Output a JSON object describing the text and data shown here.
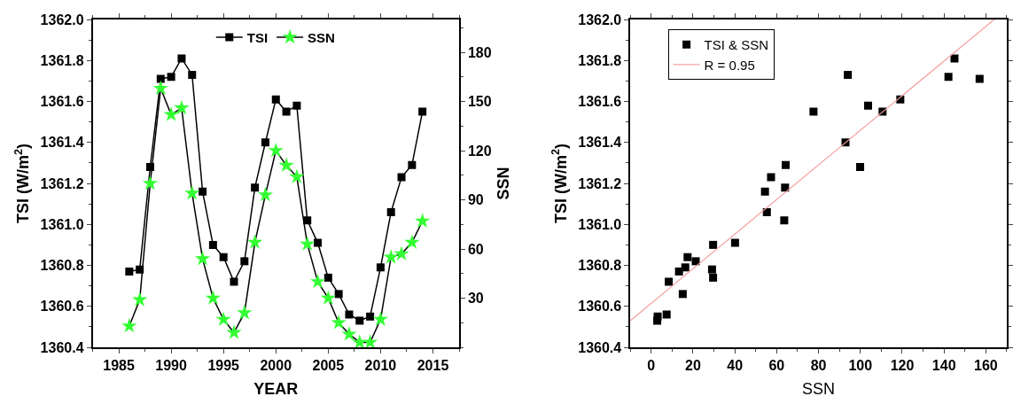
{
  "chart_data": [
    {
      "type": "line",
      "xlabel": "YEAR",
      "ylabel": "TSI (W/m$^{2}$)",
      "y2label": "SSN",
      "legend": "top",
      "x": [
        1986,
        1987,
        1988,
        1989,
        1990,
        1991,
        1992,
        1993,
        1994,
        1995,
        1996,
        1997,
        1998,
        1999,
        2000,
        2001,
        2002,
        2003,
        2004,
        2005,
        2006,
        2007,
        2008,
        2009,
        2010,
        2011,
        2012,
        2013,
        2014
      ],
      "xlim": [
        1982.5,
        2017.5
      ],
      "xticks": [
        1985,
        1990,
        1995,
        2000,
        2005,
        2010,
        2015
      ],
      "ylim": [
        1360.4,
        1362.0
      ],
      "yticks": [
        {
          "value": 1360.4,
          "label": "1360.4"
        },
        {
          "value": 1360.6,
          "label": "1360.6"
        },
        {
          "value": 1360.8,
          "label": "1360.8"
        },
        {
          "value": 1361.0,
          "label": "1361.0"
        },
        {
          "value": 1361.2,
          "label": "1361.2"
        },
        {
          "value": 1361.4,
          "label": "1361.4"
        },
        {
          "value": 1361.6,
          "label": "1361.6"
        },
        {
          "value": 1361.8,
          "label": "1361.8"
        },
        {
          "value": 1362.0,
          "label": "1362.0"
        }
      ],
      "y2lim": [
        0,
        200
      ],
      "y2ticks": [
        30,
        60,
        90,
        120,
        150,
        180
      ],
      "series": [
        {
          "name": "TSI",
          "color": "#000000",
          "marker": "square",
          "values": [
            1360.77,
            1360.78,
            1361.28,
            1361.71,
            1361.72,
            1361.81,
            1361.73,
            1361.16,
            1360.9,
            1360.84,
            1360.72,
            1360.82,
            1361.18,
            1361.4,
            1361.61,
            1361.55,
            1361.58,
            1361.02,
            1360.91,
            1360.74,
            1360.66,
            1360.56,
            1360.53,
            1360.55,
            1360.79,
            1361.06,
            1361.23,
            1361.29,
            1361.55
          ]
        },
        {
          "name": "SSN",
          "color": "#33ff33",
          "marker": "star",
          "axis": "y2",
          "values": [
            13,
            29,
            100,
            158,
            142,
            146,
            94,
            54,
            30,
            17,
            9,
            21,
            64,
            93,
            120,
            111,
            104,
            63,
            40,
            30,
            15,
            8,
            3,
            3,
            17,
            55,
            57,
            64,
            77
          ]
        }
      ]
    },
    {
      "type": "scatter",
      "xlabel": "SSN",
      "ylabel": "TSI (W/m$^{2}$)",
      "legend": "top left",
      "xlim": [
        -10,
        170
      ],
      "xticks": [
        0,
        20,
        40,
        60,
        80,
        100,
        120,
        140,
        160
      ],
      "ylim": [
        1360.4,
        1362.0
      ],
      "yticks": [
        {
          "value": 1360.4,
          "label": "1360.4"
        },
        {
          "value": 1360.6,
          "label": "1360.6"
        },
        {
          "value": 1360.8,
          "label": "1360.8"
        },
        {
          "value": 1361.0,
          "label": "1361.0"
        },
        {
          "value": 1361.2,
          "label": "1361.2"
        },
        {
          "value": 1361.4,
          "label": "1361.4"
        },
        {
          "value": 1361.6,
          "label": "1361.6"
        },
        {
          "value": 1361.8,
          "label": "1361.8"
        },
        {
          "value": 1362.0,
          "label": "1362.0"
        }
      ],
      "series": [
        {
          "name": "TSI & SSN",
          "color": "#000000",
          "marker": "square",
          "x": [
            2.9,
            3.1,
            7.4,
            8.4,
            13.3,
            15.1,
            16.3,
            17.4,
            21.3,
            29.1,
            29.6,
            29.6,
            40.1,
            55.3,
            63.6,
            54.4,
            57.3,
            64.3,
            64.0,
            77.6,
            92.9,
            94.0,
            99.9,
            103.7,
            110.6,
            119.1,
            142.1,
            145,
            157
          ],
          "values": [
            1360.53,
            1360.55,
            1360.56,
            1360.72,
            1360.77,
            1360.66,
            1360.79,
            1360.84,
            1360.82,
            1360.78,
            1360.74,
            1360.9,
            1360.91,
            1361.06,
            1361.02,
            1361.16,
            1361.23,
            1361.29,
            1361.18,
            1361.55,
            1361.4,
            1361.73,
            1361.28,
            1361.58,
            1361.55,
            1361.61,
            1361.72,
            1361.81,
            1361.71
          ]
        },
        {
          "name": "R = 0.95",
          "type": "line",
          "color": "#f4a0a0",
          "marker": "none",
          "x": [
            -10,
            164
          ],
          "values": [
            1360.53,
            1362.0
          ]
        }
      ]
    }
  ]
}
